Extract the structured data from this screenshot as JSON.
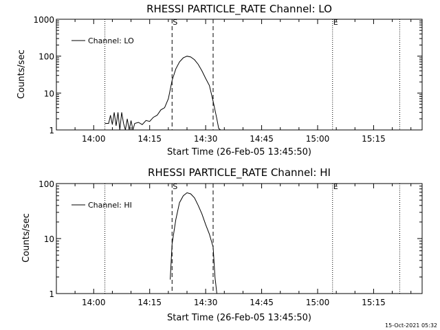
{
  "chart_data": [
    {
      "type": "line",
      "title": "RHESSI PARTICLE_RATE Channel: LO",
      "xlabel": "Start Time (26-Feb-05 13:45:50)",
      "ylabel": "Counts/sec",
      "yscale": "log",
      "ylim": [
        1,
        1000
      ],
      "xlim": [
        "13:50",
        "15:28"
      ],
      "x_ticks": [
        "14:00",
        "14:15",
        "14:30",
        "14:45",
        "15:00",
        "15:15"
      ],
      "y_ticks": [
        "1",
        "10",
        "100",
        "1000"
      ],
      "legend": {
        "position": "top-left",
        "entries": [
          "Channel: LO"
        ]
      },
      "markers": [
        {
          "time": "14:03",
          "style": "dotted",
          "label": ""
        },
        {
          "time": "14:21",
          "style": "dashed",
          "label": "S"
        },
        {
          "time": "14:32",
          "style": "dashed",
          "label": ""
        },
        {
          "time": "15:04",
          "style": "dotted",
          "label": "E"
        },
        {
          "time": "15:22",
          "style": "dotted",
          "label": ""
        }
      ],
      "series": [
        {
          "name": "Channel: LO",
          "x": [
            "14:03",
            "14:04",
            "14:04:30",
            "14:05",
            "14:05:30",
            "14:06",
            "14:06:30",
            "14:07",
            "14:07:30",
            "14:08",
            "14:08:30",
            "14:09",
            "14:09:30",
            "14:10",
            "14:10:30",
            "14:11",
            "14:12",
            "14:13",
            "14:14",
            "14:15",
            "14:16",
            "14:17",
            "14:18",
            "14:19",
            "14:20",
            "14:21",
            "14:22",
            "14:23",
            "14:24",
            "14:25",
            "14:26",
            "14:27",
            "14:28",
            "14:29",
            "14:30",
            "14:31",
            "14:32",
            "14:33",
            "14:33:30",
            "14:34"
          ],
          "y": [
            1.5,
            1.5,
            2.5,
            1.4,
            3,
            1.3,
            3,
            1,
            3,
            1.5,
            1,
            2,
            1,
            1.8,
            1,
            1.5,
            1.6,
            1.4,
            1.8,
            1.7,
            2.2,
            2.5,
            3.5,
            4,
            7,
            22,
            45,
            70,
            90,
            100,
            95,
            80,
            60,
            40,
            25,
            16,
            6,
            2,
            1.1,
            1
          ]
        }
      ]
    },
    {
      "type": "line",
      "title": "RHESSI PARTICLE_RATE Channel: HI",
      "xlabel": "Start Time (26-Feb-05 13:45:50)",
      "ylabel": "Counts/sec",
      "yscale": "log",
      "ylim": [
        1,
        100
      ],
      "xlim": [
        "13:50",
        "15:28"
      ],
      "x_ticks": [
        "14:00",
        "14:15",
        "14:30",
        "14:45",
        "15:00",
        "15:15"
      ],
      "y_ticks": [
        "1",
        "10",
        "100"
      ],
      "legend": {
        "position": "top-left",
        "entries": [
          "Channel: HI"
        ]
      },
      "markers": [
        {
          "time": "14:03",
          "style": "dotted",
          "label": ""
        },
        {
          "time": "14:21",
          "style": "dashed",
          "label": "S"
        },
        {
          "time": "14:32",
          "style": "dashed",
          "label": ""
        },
        {
          "time": "15:04",
          "style": "dotted",
          "label": "E"
        },
        {
          "time": "15:22",
          "style": "dotted",
          "label": ""
        }
      ],
      "series": [
        {
          "name": "Channel: HI",
          "x": [
            "14:20:30",
            "14:21",
            "14:22",
            "14:23",
            "14:24",
            "14:25",
            "14:26",
            "14:27",
            "14:28",
            "14:29",
            "14:30",
            "14:31",
            "14:32",
            "14:32:30",
            "14:33"
          ],
          "y": [
            1.8,
            8,
            22,
            45,
            60,
            68,
            65,
            55,
            40,
            28,
            18,
            12,
            7,
            2,
            1
          ]
        }
      ]
    }
  ],
  "timestamp": "15-Oct-2021 05:32"
}
